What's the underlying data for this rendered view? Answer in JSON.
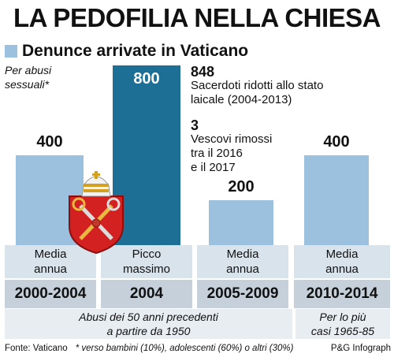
{
  "title": "LA PEDOFILIA NELLA CHIESA",
  "legend": {
    "label": "Denunce arrivate in Vaticano"
  },
  "note": [
    "Per abusi",
    "sessuali*"
  ],
  "colors": {
    "normal": "#9cc1df",
    "peak": "#1d6f96",
    "band": "#c5d0da",
    "sub": "#d9e3ec"
  },
  "chart_data": {
    "type": "bar",
    "categories": [
      "2000-2004",
      "2004",
      "2005-2009",
      "2010-2014"
    ],
    "values": [
      400,
      800,
      200,
      400
    ],
    "ylim": [
      0,
      800
    ],
    "value_labels": [
      "400",
      "800",
      "200",
      "400"
    ],
    "bar_sublabels": [
      [
        "Media",
        "annua"
      ],
      [
        "Picco",
        "massimo"
      ],
      [
        "Media",
        "annua"
      ],
      [
        "Media",
        "annua"
      ]
    ]
  },
  "bottom_notes": {
    "left": [
      "Abusi dei 50 anni precedenti",
      "a partire da 1950"
    ],
    "right": [
      "Per lo più",
      "casi 1965-85"
    ]
  },
  "annotations": [
    {
      "value": "848",
      "lines": [
        "Sacerdoti ridotti allo stato",
        "laicale (2004-2013)"
      ]
    },
    {
      "value": "3",
      "lines": [
        "Vescovi rimossi",
        "tra il 2016",
        "e il 2017"
      ]
    }
  ],
  "footer": {
    "source": "Fonte: Vaticano",
    "footnote": "* verso bambini (10%), adolescenti (60%) o altri (30%)",
    "credit": "P&G Infograph"
  }
}
